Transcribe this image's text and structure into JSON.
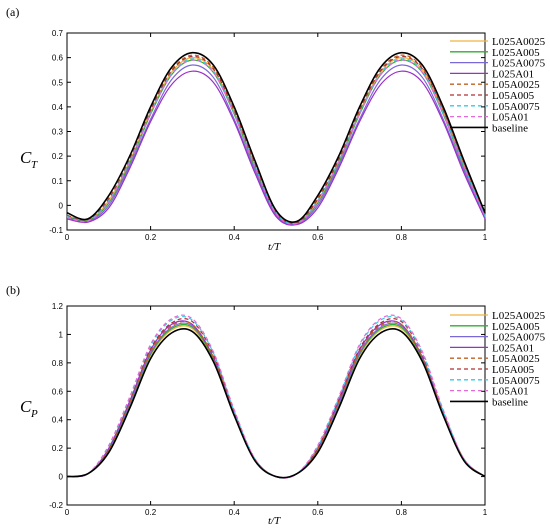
{
  "figure": {
    "panels": [
      "(a)",
      "(b)"
    ]
  },
  "chart_data": [
    {
      "type": "line",
      "panel_label": "(a)",
      "ylabel_main": "C",
      "ylabel_sub": "T",
      "xlabel": "t/T",
      "xlim": [
        0,
        1
      ],
      "ylim": [
        -0.1,
        0.7
      ],
      "xticks": [
        0,
        0.2,
        0.4,
        0.6,
        0.8,
        1
      ],
      "xtick_labels": [
        "0",
        "0.2",
        "0.4",
        "0.6",
        "0.8",
        "1"
      ],
      "yticks": [
        -0.1,
        0,
        0.1,
        0.2,
        0.3,
        0.4,
        0.5,
        0.6,
        0.7
      ],
      "ytick_labels": [
        "-0.1",
        "0",
        "0.1",
        "0.2",
        "0.3",
        "0.4",
        "0.5",
        "0.6",
        "0.7"
      ],
      "legend_position": "top-right",
      "x": [
        0,
        0.05,
        0.1,
        0.15,
        0.2,
        0.25,
        0.3,
        0.35,
        0.4,
        0.45,
        0.5,
        0.55,
        0.6,
        0.65,
        0.7,
        0.75,
        0.8,
        0.85,
        0.9,
        0.95,
        1
      ],
      "series": [
        {
          "name": "L025A0025",
          "color": "#f0b541",
          "dash": "solid",
          "values": [
            -0.04,
            -0.06,
            0.02,
            0.18,
            0.38,
            0.54,
            0.6,
            0.55,
            0.38,
            0.16,
            -0.03,
            -0.07,
            0.02,
            0.18,
            0.38,
            0.54,
            0.6,
            0.55,
            0.38,
            0.16,
            -0.04
          ]
        },
        {
          "name": "L025A005",
          "color": "#2fae2f",
          "dash": "solid",
          "values": [
            -0.045,
            -0.062,
            0.01,
            0.17,
            0.37,
            0.53,
            0.59,
            0.54,
            0.37,
            0.15,
            -0.035,
            -0.072,
            0.01,
            0.17,
            0.37,
            0.53,
            0.59,
            0.54,
            0.37,
            0.15,
            -0.045
          ]
        },
        {
          "name": "L025A0075",
          "color": "#7b68d8",
          "dash": "solid",
          "values": [
            -0.05,
            -0.065,
            0.0,
            0.16,
            0.35,
            0.51,
            0.57,
            0.52,
            0.35,
            0.14,
            -0.04,
            -0.075,
            0.0,
            0.16,
            0.35,
            0.51,
            0.57,
            0.52,
            0.35,
            0.14,
            -0.05
          ]
        },
        {
          "name": "L025A01",
          "color": "#9b30c8",
          "dash": "solid",
          "values": [
            -0.055,
            -0.068,
            -0.01,
            0.15,
            0.34,
            0.49,
            0.545,
            0.5,
            0.34,
            0.13,
            -0.045,
            -0.078,
            -0.01,
            0.15,
            0.34,
            0.49,
            0.545,
            0.5,
            0.34,
            0.13,
            -0.055
          ]
        },
        {
          "name": "L05A0025",
          "color": "#c06020",
          "dash": "dashed",
          "values": [
            -0.04,
            -0.058,
            0.03,
            0.19,
            0.39,
            0.55,
            0.61,
            0.56,
            0.39,
            0.17,
            -0.025,
            -0.068,
            0.03,
            0.19,
            0.39,
            0.55,
            0.61,
            0.56,
            0.39,
            0.17,
            -0.04
          ]
        },
        {
          "name": "L05A005",
          "color": "#b03030",
          "dash": "dashed",
          "values": [
            -0.042,
            -0.06,
            0.025,
            0.185,
            0.385,
            0.545,
            0.605,
            0.555,
            0.385,
            0.165,
            -0.028,
            -0.07,
            0.025,
            0.185,
            0.385,
            0.545,
            0.605,
            0.555,
            0.385,
            0.165,
            -0.042
          ]
        },
        {
          "name": "L05A0075",
          "color": "#35c8e8",
          "dash": "dashed",
          "values": [
            -0.045,
            -0.062,
            0.02,
            0.18,
            0.375,
            0.535,
            0.595,
            0.545,
            0.375,
            0.16,
            -0.03,
            -0.072,
            0.02,
            0.18,
            0.375,
            0.535,
            0.595,
            0.545,
            0.375,
            0.16,
            -0.045
          ]
        },
        {
          "name": "L05A01",
          "color": "#e46ad8",
          "dash": "dashed",
          "values": [
            -0.048,
            -0.064,
            0.015,
            0.175,
            0.37,
            0.53,
            0.59,
            0.54,
            0.37,
            0.155,
            -0.033,
            -0.074,
            0.015,
            0.175,
            0.37,
            0.53,
            0.59,
            0.54,
            0.37,
            0.155,
            -0.048
          ]
        },
        {
          "name": "baseline",
          "color": "#000000",
          "dash": "solid",
          "values": [
            -0.03,
            -0.055,
            0.04,
            0.2,
            0.4,
            0.56,
            0.62,
            0.57,
            0.4,
            0.18,
            -0.02,
            -0.065,
            0.04,
            0.2,
            0.4,
            0.56,
            0.62,
            0.57,
            0.4,
            0.18,
            -0.03
          ]
        }
      ]
    },
    {
      "type": "line",
      "panel_label": "(b)",
      "ylabel_main": "C",
      "ylabel_sub": "P",
      "xlabel": "t/T",
      "xlim": [
        0,
        1
      ],
      "ylim": [
        -0.2,
        1.2
      ],
      "xticks": [
        0,
        0.2,
        0.4,
        0.6,
        0.8,
        1
      ],
      "xtick_labels": [
        "0",
        "0.2",
        "0.4",
        "0.6",
        "0.8",
        "1"
      ],
      "yticks": [
        -0.2,
        0,
        0.2,
        0.4,
        0.6,
        0.8,
        1,
        1.2
      ],
      "ytick_labels": [
        "-0.2",
        "0",
        "0.2",
        "0.4",
        "0.6",
        "0.8",
        "1",
        "1.2"
      ],
      "legend_position": "top-right",
      "x": [
        0,
        0.05,
        0.1,
        0.15,
        0.2,
        0.25,
        0.3,
        0.35,
        0.4,
        0.45,
        0.5,
        0.55,
        0.6,
        0.65,
        0.7,
        0.75,
        0.8,
        0.85,
        0.9,
        0.95,
        1
      ],
      "series": [
        {
          "name": "L025A0025",
          "color": "#f0b541",
          "dash": "solid",
          "values": [
            0.0,
            0.02,
            0.18,
            0.5,
            0.85,
            1.03,
            1.04,
            0.82,
            0.44,
            0.12,
            0.0,
            0.02,
            0.18,
            0.5,
            0.85,
            1.03,
            1.04,
            0.82,
            0.44,
            0.12,
            0.0
          ]
        },
        {
          "name": "L025A005",
          "color": "#2fae2f",
          "dash": "solid",
          "values": [
            0.0,
            0.02,
            0.18,
            0.5,
            0.86,
            1.04,
            1.05,
            0.83,
            0.45,
            0.12,
            0.0,
            0.02,
            0.18,
            0.5,
            0.86,
            1.04,
            1.05,
            0.83,
            0.45,
            0.12,
            0.0
          ]
        },
        {
          "name": "L025A0075",
          "color": "#7b68d8",
          "dash": "solid",
          "values": [
            0.0,
            0.02,
            0.19,
            0.51,
            0.87,
            1.05,
            1.06,
            0.84,
            0.45,
            0.12,
            0.0,
            0.02,
            0.19,
            0.51,
            0.87,
            1.05,
            1.06,
            0.84,
            0.45,
            0.12,
            0.0
          ]
        },
        {
          "name": "L025A01",
          "color": "#9b30c8",
          "dash": "solid",
          "values": [
            0.0,
            0.02,
            0.2,
            0.53,
            0.89,
            1.07,
            1.07,
            0.84,
            0.45,
            0.12,
            0.0,
            0.02,
            0.2,
            0.53,
            0.89,
            1.07,
            1.07,
            0.84,
            0.45,
            0.12,
            0.0
          ]
        },
        {
          "name": "L05A0025",
          "color": "#c06020",
          "dash": "dashed",
          "values": [
            0.0,
            0.02,
            0.19,
            0.52,
            0.88,
            1.06,
            1.07,
            0.84,
            0.45,
            0.12,
            0.0,
            0.02,
            0.19,
            0.52,
            0.88,
            1.06,
            1.07,
            0.84,
            0.45,
            0.12,
            0.0
          ]
        },
        {
          "name": "L05A005",
          "color": "#b03030",
          "dash": "dashed",
          "values": [
            0.0,
            0.02,
            0.2,
            0.54,
            0.9,
            1.08,
            1.09,
            0.86,
            0.46,
            0.12,
            0.0,
            0.02,
            0.2,
            0.54,
            0.9,
            1.08,
            1.09,
            0.86,
            0.46,
            0.12,
            0.0
          ]
        },
        {
          "name": "L05A0075",
          "color": "#35c8e8",
          "dash": "dashed",
          "values": [
            0.0,
            0.02,
            0.21,
            0.55,
            0.92,
            1.1,
            1.1,
            0.87,
            0.46,
            0.12,
            0.0,
            0.02,
            0.21,
            0.55,
            0.92,
            1.1,
            1.1,
            0.87,
            0.46,
            0.12,
            0.0
          ]
        },
        {
          "name": "L05A01",
          "color": "#e46ad8",
          "dash": "dashed",
          "values": [
            0.0,
            0.02,
            0.22,
            0.56,
            0.93,
            1.11,
            1.11,
            0.88,
            0.47,
            0.12,
            0.0,
            0.02,
            0.22,
            0.56,
            0.93,
            1.11,
            1.11,
            0.88,
            0.47,
            0.12,
            0.0
          ]
        },
        {
          "name": "baseline",
          "color": "#000000",
          "dash": "solid",
          "values": [
            0.0,
            0.02,
            0.17,
            0.48,
            0.83,
            1.01,
            1.02,
            0.81,
            0.43,
            0.11,
            0.0,
            0.02,
            0.17,
            0.48,
            0.83,
            1.01,
            1.02,
            0.81,
            0.43,
            0.11,
            0.0
          ]
        }
      ]
    }
  ]
}
